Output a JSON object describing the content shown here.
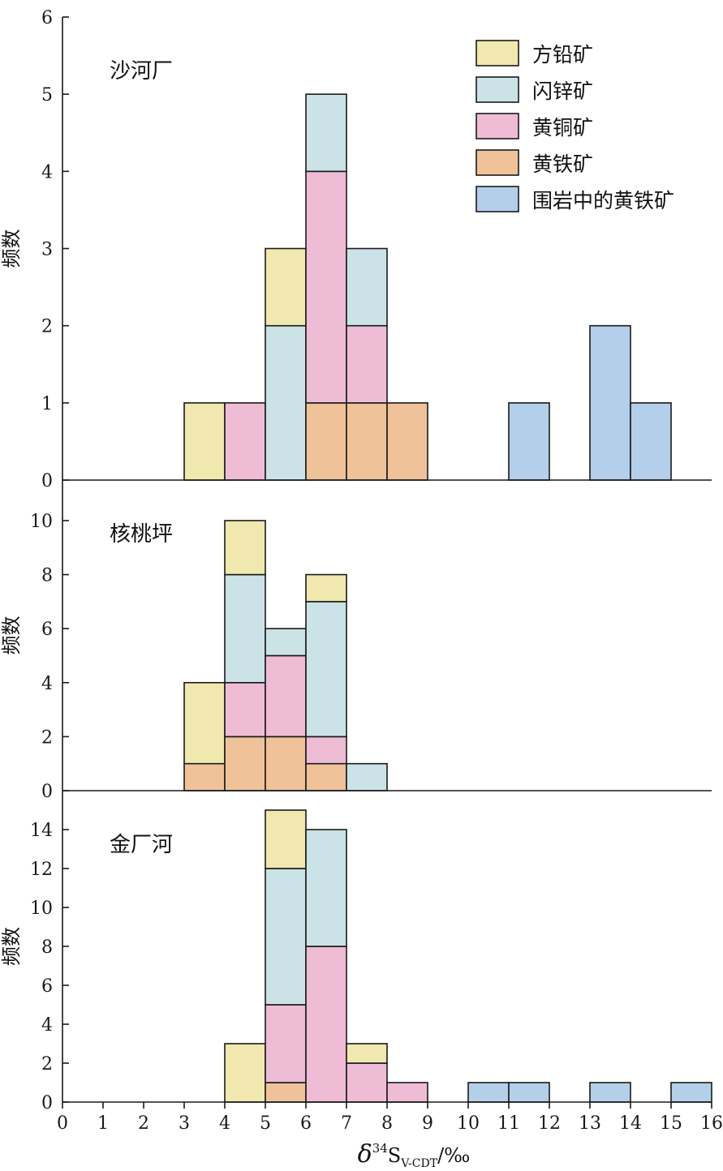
{
  "chart_data": {
    "type": "stacked-histogram",
    "x_axis": {
      "label_parts": {
        "delta": "δ",
        "sup": "34",
        "s": "S",
        "sub": "V-CDT",
        "unit": "/‰"
      },
      "range": [
        0,
        16
      ],
      "ticks": [
        "0",
        "1",
        "2",
        "3",
        "4",
        "5",
        "6",
        "7",
        "8",
        "9",
        "10",
        "11",
        "12",
        "13",
        "14",
        "15",
        "16"
      ]
    },
    "series": [
      {
        "key": "galena",
        "name": "方铅矿",
        "color": "#f1e8b0"
      },
      {
        "key": "sphalerite",
        "name": "闪锌矿",
        "color": "#cbe3e6"
      },
      {
        "key": "chalcopyrite",
        "name": "黄铜矿",
        "color": "#efbcd6"
      },
      {
        "key": "pyrite",
        "name": "黄铁矿",
        "color": "#f0c29a"
      },
      {
        "key": "wallrock_pyrite",
        "name": "围岩中的黄铁矿",
        "color": "#b4cfe9"
      }
    ],
    "panels": [
      {
        "title": "沙河厂",
        "ylabel": "频数",
        "ylim": [
          0,
          6
        ],
        "yticks": [
          "0",
          "1",
          "2",
          "3",
          "4",
          "5",
          "6"
        ],
        "bins": [
          {
            "x0": 3,
            "x1": 4,
            "counts": {
              "galena": 1
            }
          },
          {
            "x0": 4,
            "x1": 5,
            "counts": {
              "chalcopyrite": 1
            }
          },
          {
            "x0": 5,
            "x1": 6,
            "counts": {
              "sphalerite": 2,
              "galena": 1
            }
          },
          {
            "x0": 6,
            "x1": 7,
            "counts": {
              "pyrite": 1,
              "chalcopyrite": 3,
              "sphalerite": 1
            }
          },
          {
            "x0": 7,
            "x1": 8,
            "counts": {
              "pyrite": 1,
              "chalcopyrite": 1,
              "sphalerite": 1
            }
          },
          {
            "x0": 8,
            "x1": 9,
            "counts": {
              "pyrite": 1
            }
          },
          {
            "x0": 11,
            "x1": 12,
            "counts": {
              "wallrock_pyrite": 1
            }
          },
          {
            "x0": 13,
            "x1": 14,
            "counts": {
              "wallrock_pyrite": 2
            }
          },
          {
            "x0": 14,
            "x1": 15,
            "counts": {
              "wallrock_pyrite": 1
            }
          }
        ]
      },
      {
        "title": "核桃坪",
        "ylabel": "频数",
        "ylim": [
          0,
          11.5
        ],
        "yticks": [
          "0",
          "2",
          "4",
          "6",
          "8",
          "10"
        ],
        "bins": [
          {
            "x0": 3,
            "x1": 4,
            "counts": {
              "pyrite": 1,
              "galena": 3
            }
          },
          {
            "x0": 4,
            "x1": 5,
            "counts": {
              "pyrite": 2,
              "chalcopyrite": 2,
              "sphalerite": 4,
              "galena": 2
            }
          },
          {
            "x0": 5,
            "x1": 6,
            "counts": {
              "pyrite": 2,
              "chalcopyrite": 3,
              "sphalerite": 1
            }
          },
          {
            "x0": 6,
            "x1": 7,
            "counts": {
              "pyrite": 1,
              "chalcopyrite": 1,
              "sphalerite": 5,
              "galena": 1
            }
          },
          {
            "x0": 7,
            "x1": 8,
            "counts": {
              "sphalerite": 1
            }
          }
        ]
      },
      {
        "title": "金厂河",
        "ylabel": "频数",
        "ylim": [
          0,
          16
        ],
        "yticks": [
          "0",
          "2",
          "4",
          "6",
          "8",
          "10",
          "12",
          "14"
        ],
        "bins": [
          {
            "x0": 4,
            "x1": 5,
            "counts": {
              "galena": 3
            }
          },
          {
            "x0": 5,
            "x1": 6,
            "counts": {
              "pyrite": 1,
              "chalcopyrite": 4,
              "sphalerite": 7,
              "galena": 3
            }
          },
          {
            "x0": 6,
            "x1": 7,
            "counts": {
              "chalcopyrite": 8,
              "sphalerite": 6
            }
          },
          {
            "x0": 7,
            "x1": 8,
            "counts": {
              "chalcopyrite": 2,
              "galena": 1
            }
          },
          {
            "x0": 8,
            "x1": 9,
            "counts": {
              "chalcopyrite": 1
            }
          },
          {
            "x0": 10,
            "x1": 11,
            "counts": {
              "wallrock_pyrite": 1
            }
          },
          {
            "x0": 11,
            "x1": 12,
            "counts": {
              "wallrock_pyrite": 1
            }
          },
          {
            "x0": 13,
            "x1": 14,
            "counts": {
              "wallrock_pyrite": 1
            }
          },
          {
            "x0": 15,
            "x1": 16,
            "counts": {
              "wallrock_pyrite": 1
            }
          }
        ]
      }
    ]
  }
}
